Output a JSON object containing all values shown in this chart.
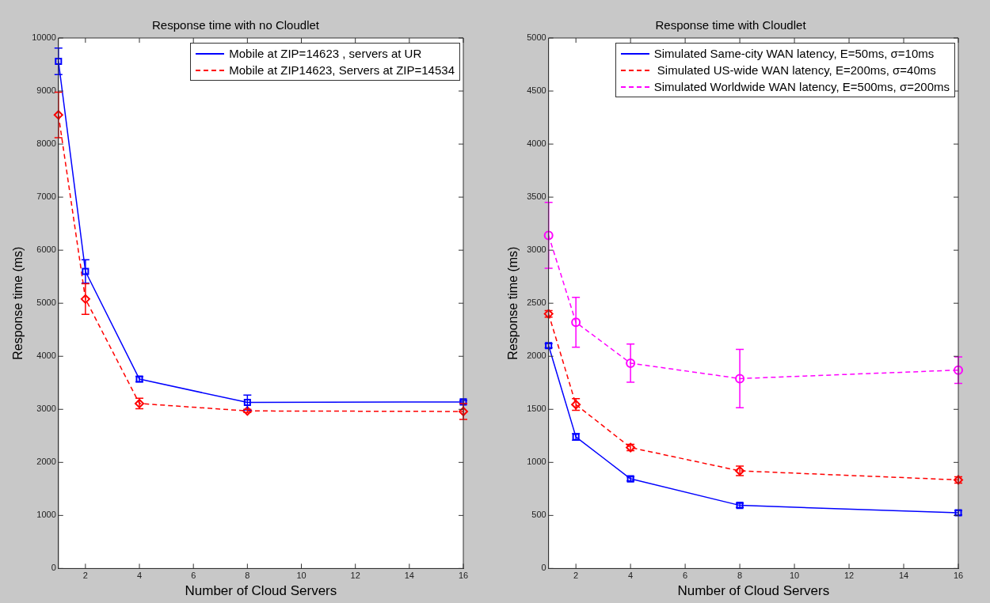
{
  "chart_data": [
    {
      "type": "line",
      "title": "Response time with no Cloudlet",
      "xlabel": "Number of Cloud Servers",
      "ylabel": "Response time (ms)",
      "x": [
        1,
        2,
        4,
        8,
        16
      ],
      "xlim": [
        1,
        16
      ],
      "xticks": [
        2,
        4,
        6,
        8,
        10,
        12,
        14,
        16
      ],
      "ylim": [
        0,
        10000
      ],
      "yticks": [
        0,
        1000,
        2000,
        3000,
        4000,
        5000,
        6000,
        7000,
        8000,
        9000,
        10000
      ],
      "grid": false,
      "legend": "top right",
      "series": [
        {
          "name": "Mobile at ZIP=14623 , servers at UR",
          "color": "#0000ff",
          "marker": "square",
          "line_style": "solid",
          "values": [
            9560,
            5600,
            3570,
            3130,
            3140
          ],
          "errors": [
            250,
            220,
            50,
            140,
            30
          ]
        },
        {
          "name": "Mobile at ZIP14623, Servers at ZIP=14534",
          "color": "#ff0000",
          "marker": "diamond",
          "line_style": "dashed",
          "values": [
            8550,
            5080,
            3110,
            2970,
            2960
          ],
          "errors": [
            430,
            290,
            100,
            30,
            150
          ]
        }
      ]
    },
    {
      "type": "line",
      "title": "Response time with Cloudlet",
      "xlabel": "Number of Cloud Servers",
      "ylabel": "Response time (ms)",
      "x": [
        1,
        2,
        4,
        8,
        16
      ],
      "xlim": [
        1,
        16
      ],
      "xticks": [
        2,
        4,
        6,
        8,
        10,
        12,
        14,
        16
      ],
      "ylim": [
        0,
        5000
      ],
      "yticks": [
        0,
        500,
        1000,
        1500,
        2000,
        2500,
        3000,
        3500,
        4000,
        4500,
        5000
      ],
      "grid": false,
      "legend": "top right",
      "series": [
        {
          "name": "Simulated Same-city WAN latency, E=50ms, σ=10ms",
          "color": "#0000ff",
          "marker": "square",
          "line_style": "solid",
          "values": [
            2100,
            1240,
            845,
            595,
            525
          ],
          "errors": [
            20,
            30,
            20,
            20,
            20
          ]
        },
        {
          "name": " Simulated US-wide WAN latency, E=200ms, σ=40ms",
          "color": "#ff0000",
          "marker": "diamond",
          "line_style": "dashed",
          "values": [
            2400,
            1545,
            1140,
            920,
            835
          ],
          "errors": [
            30,
            55,
            30,
            45,
            30
          ]
        },
        {
          "name": "Simulated Worldwide WAN latency, E=500ms, σ=200ms",
          "color": "#ff00ff",
          "marker": "circle",
          "line_style": "dashed",
          "values": [
            3140,
            2320,
            1935,
            1790,
            1870
          ],
          "errors": [
            310,
            235,
            180,
            275,
            125
          ]
        }
      ]
    }
  ]
}
